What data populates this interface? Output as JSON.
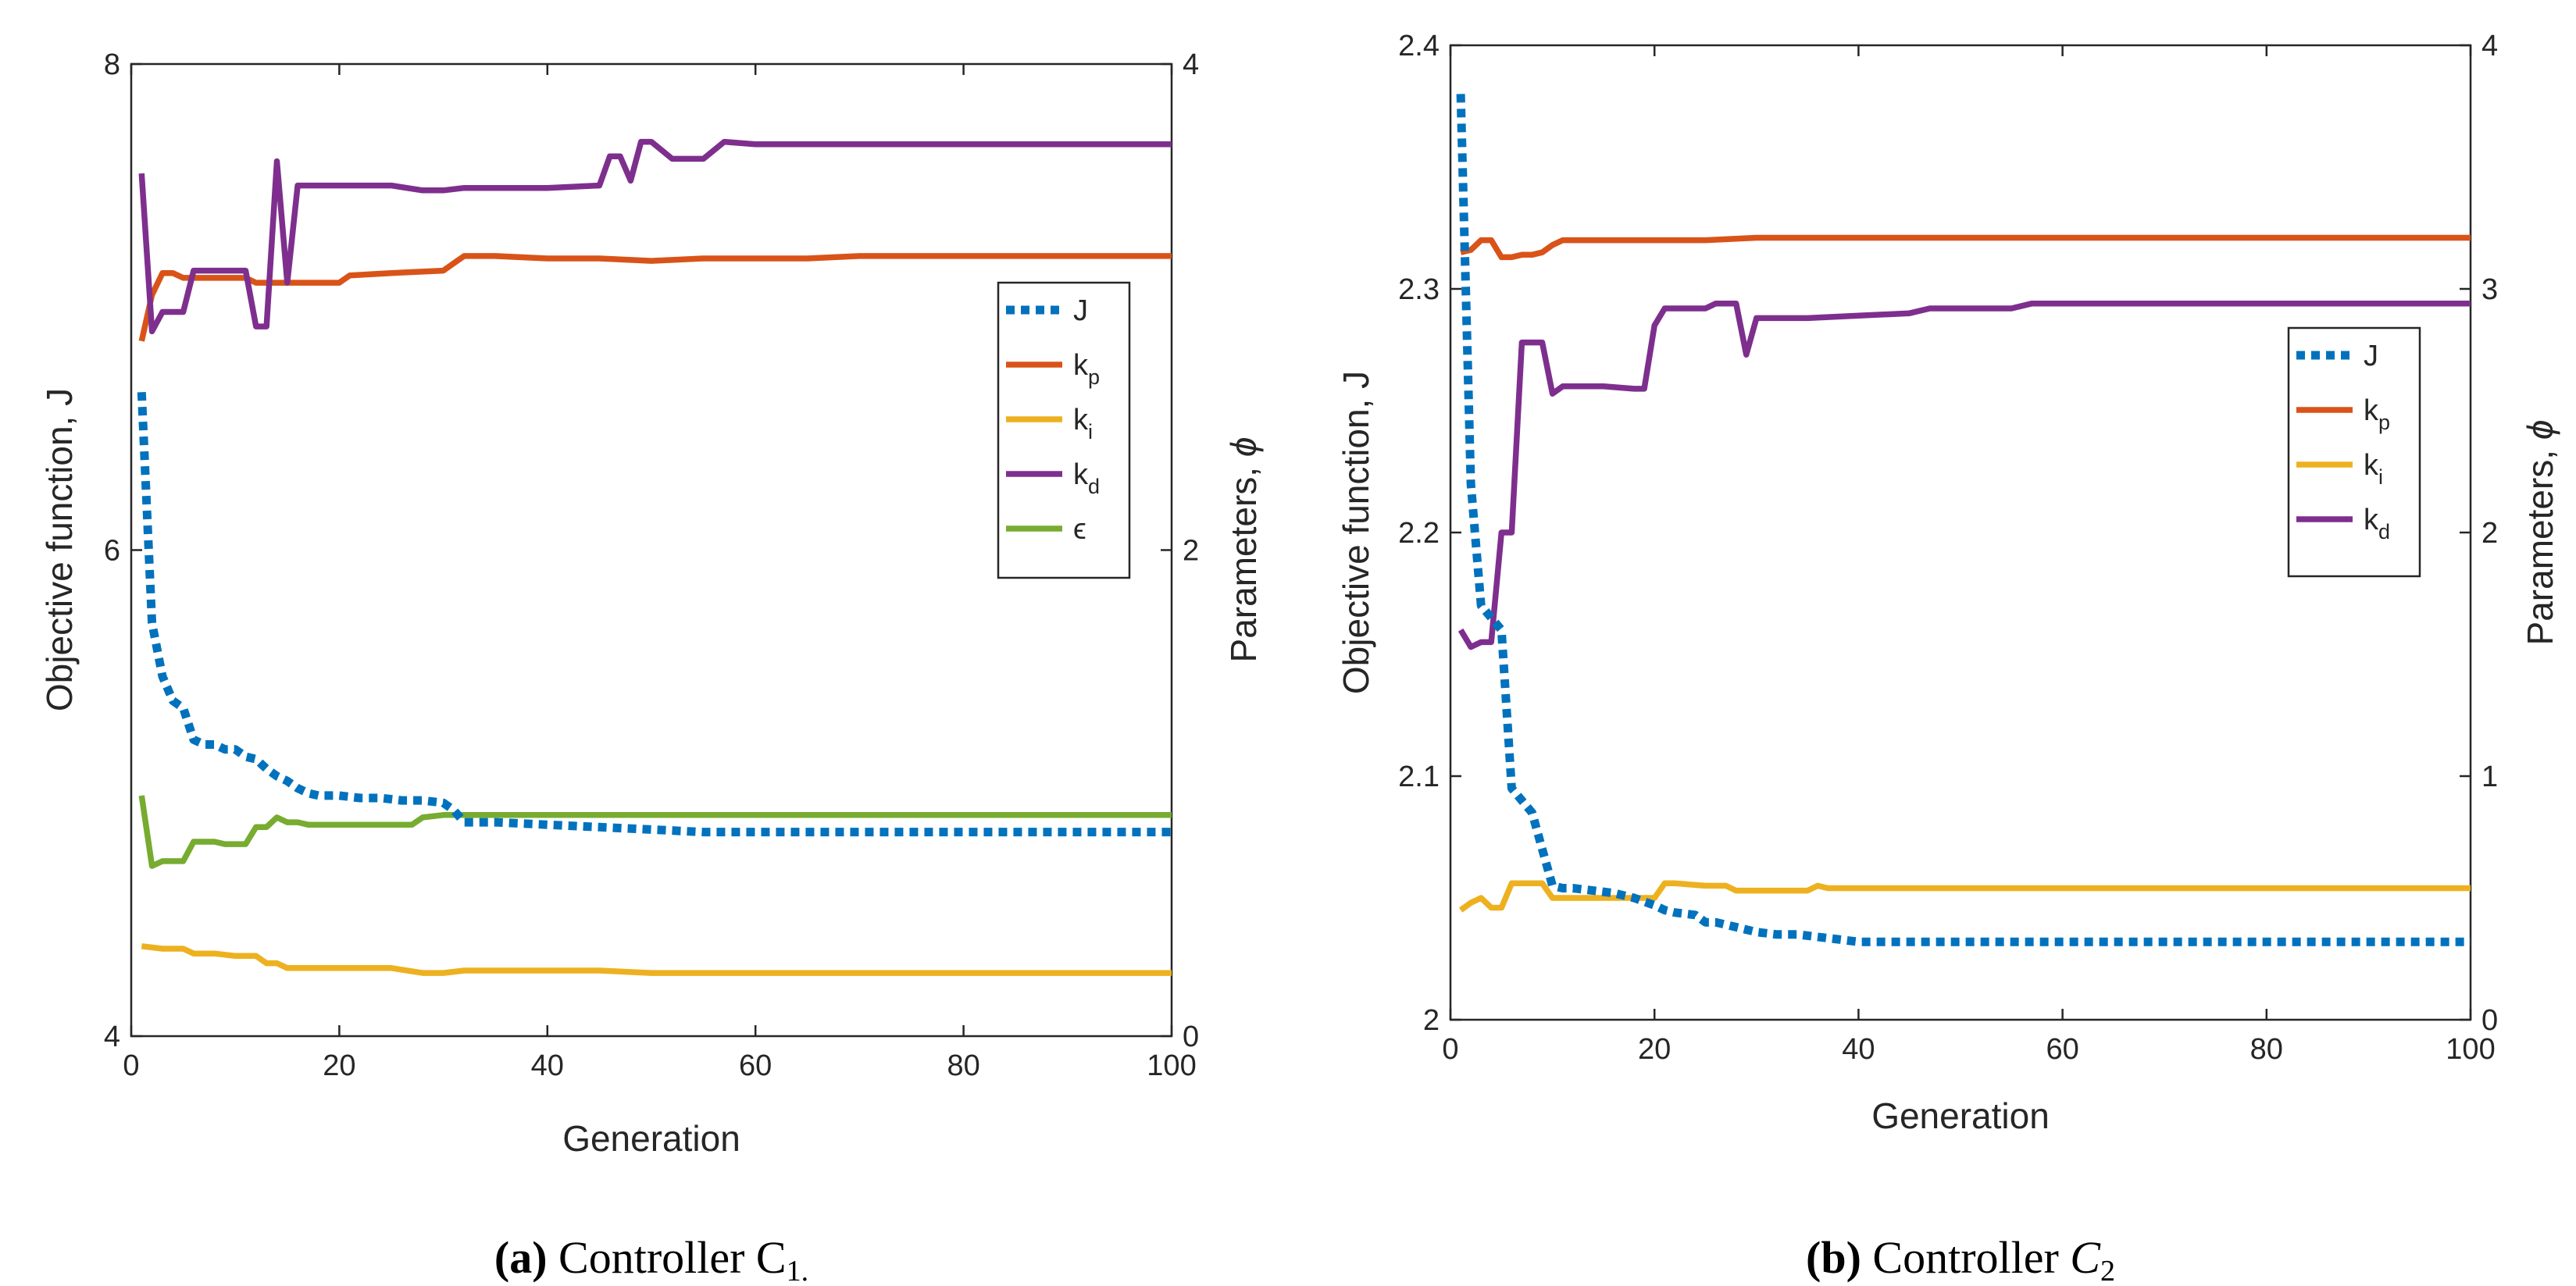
{
  "colors": {
    "J": "#0072BD",
    "kp": "#D95319",
    "ki": "#EDB120",
    "kd": "#7E2F8E",
    "eps": "#77AC30"
  },
  "panels": [
    {
      "id": "a",
      "caption": {
        "bold": "(a)",
        "text": "Controller",
        "sym": "C",
        "sub": "1."
      },
      "chart_data": {
        "type": "line",
        "xlabel": "Generation",
        "ylabel_left": "Objective function, J",
        "ylabel_right_text": "Parameters, ",
        "ylabel_right_sym": "ϕ",
        "xlim": [
          0,
          100
        ],
        "ylim_left": [
          4,
          8
        ],
        "ylim_right": [
          0,
          4
        ],
        "xticks": [
          0,
          20,
          40,
          60,
          80,
          100
        ],
        "yticks_left": [
          4,
          6,
          8
        ],
        "yticks_right": [
          0,
          2,
          4
        ],
        "legend": [
          {
            "key": "J",
            "main": "J",
            "sub": "",
            "style": "dotted"
          },
          {
            "key": "kp",
            "main": "k",
            "sub": "p",
            "style": "solid"
          },
          {
            "key": "ki",
            "main": "k",
            "sub": "i",
            "style": "solid"
          },
          {
            "key": "kd",
            "main": "k",
            "sub": "d",
            "style": "solid"
          },
          {
            "key": "eps",
            "main": "ϵ",
            "sub": "",
            "style": "solid"
          }
        ],
        "series": [
          {
            "key": "J",
            "axis": "left",
            "x": [
              1,
              2,
              3,
              4,
              5,
              6,
              7,
              8,
              9,
              10,
              11,
              12,
              13,
              14,
              15,
              16,
              17,
              18,
              19,
              20,
              22,
              24,
              26,
              28,
              30,
              31,
              32,
              35,
              40,
              45,
              50,
              55,
              60,
              65,
              70,
              80,
              90,
              100
            ],
            "y": [
              6.65,
              5.7,
              5.48,
              5.38,
              5.35,
              5.22,
              5.2,
              5.2,
              5.18,
              5.18,
              5.15,
              5.14,
              5.1,
              5.07,
              5.05,
              5.02,
              5.0,
              4.99,
              4.99,
              4.99,
              4.98,
              4.98,
              4.97,
              4.97,
              4.96,
              4.93,
              4.88,
              4.88,
              4.87,
              4.86,
              4.85,
              4.84,
              4.84,
              4.84,
              4.84,
              4.84,
              4.84,
              4.84
            ]
          },
          {
            "key": "kp",
            "axis": "right",
            "x": [
              1,
              2,
              3,
              4,
              5,
              6,
              7,
              8,
              9,
              10,
              11,
              12,
              13,
              14,
              15,
              16,
              17,
              18,
              19,
              20,
              21,
              25,
              30,
              31,
              32,
              35,
              40,
              45,
              50,
              55,
              60,
              65,
              70,
              80,
              90,
              100
            ],
            "y": [
              2.86,
              3.05,
              3.14,
              3.14,
              3.12,
              3.12,
              3.12,
              3.12,
              3.12,
              3.12,
              3.12,
              3.1,
              3.1,
              3.1,
              3.1,
              3.1,
              3.1,
              3.1,
              3.1,
              3.1,
              3.13,
              3.14,
              3.15,
              3.18,
              3.21,
              3.21,
              3.2,
              3.2,
              3.19,
              3.2,
              3.2,
              3.2,
              3.21,
              3.21,
              3.21,
              3.21
            ]
          },
          {
            "key": "ki",
            "axis": "right",
            "x": [
              1,
              3,
              5,
              6,
              8,
              10,
              12,
              13,
              14,
              15,
              17,
              20,
              25,
              28,
              30,
              32,
              35,
              40,
              45,
              50,
              60,
              70,
              80,
              90,
              100
            ],
            "y": [
              0.37,
              0.36,
              0.36,
              0.34,
              0.34,
              0.33,
              0.33,
              0.3,
              0.3,
              0.28,
              0.28,
              0.28,
              0.28,
              0.26,
              0.26,
              0.27,
              0.27,
              0.27,
              0.27,
              0.26,
              0.26,
              0.26,
              0.26,
              0.26,
              0.26
            ]
          },
          {
            "key": "kd",
            "axis": "right",
            "x": [
              1,
              2,
              3,
              4,
              5,
              6,
              7,
              8,
              9,
              10,
              11,
              12,
              13,
              14,
              15,
              16,
              17,
              18,
              19,
              20,
              25,
              28,
              30,
              32,
              35,
              40,
              45,
              46,
              47,
              48,
              49,
              50,
              52,
              54,
              55,
              57,
              60,
              62,
              65,
              70,
              80,
              90,
              100
            ],
            "y": [
              3.55,
              2.9,
              2.98,
              2.98,
              2.98,
              3.15,
              3.15,
              3.15,
              3.15,
              3.15,
              3.15,
              2.92,
              2.92,
              3.6,
              3.1,
              3.5,
              3.5,
              3.5,
              3.5,
              3.5,
              3.5,
              3.48,
              3.48,
              3.49,
              3.49,
              3.49,
              3.5,
              3.62,
              3.62,
              3.52,
              3.68,
              3.68,
              3.61,
              3.61,
              3.61,
              3.68,
              3.67,
              3.67,
              3.67,
              3.67,
              3.67,
              3.67,
              3.67
            ]
          },
          {
            "key": "eps",
            "axis": "right",
            "x": [
              1,
              2,
              3,
              4,
              5,
              6,
              7,
              8,
              9,
              10,
              11,
              12,
              13,
              14,
              15,
              16,
              17,
              18,
              19,
              20,
              22,
              25,
              27,
              28,
              30,
              35,
              40,
              50,
              60,
              70,
              80,
              90,
              100
            ],
            "y": [
              0.99,
              0.7,
              0.72,
              0.72,
              0.72,
              0.8,
              0.8,
              0.8,
              0.79,
              0.79,
              0.79,
              0.86,
              0.86,
              0.9,
              0.88,
              0.88,
              0.87,
              0.87,
              0.87,
              0.87,
              0.87,
              0.87,
              0.87,
              0.9,
              0.91,
              0.91,
              0.91,
              0.91,
              0.91,
              0.91,
              0.91,
              0.91,
              0.91
            ]
          }
        ]
      }
    },
    {
      "id": "b",
      "caption": {
        "bold": "(b)",
        "text": "Controller",
        "sym": "C",
        "sub": "2"
      },
      "chart_data": {
        "type": "line",
        "xlabel": "Generation",
        "ylabel_left": "Objective function, J",
        "ylabel_right_text": "Parameters, ",
        "ylabel_right_sym": "ϕ",
        "xlim": [
          0,
          100
        ],
        "ylim_left": [
          2,
          2.4
        ],
        "ylim_right": [
          0,
          4
        ],
        "xticks": [
          0,
          20,
          40,
          60,
          80,
          100
        ],
        "yticks_left": [
          2,
          2.1,
          2.2,
          2.3,
          2.4
        ],
        "yticks_right": [
          0,
          1,
          2,
          3,
          4
        ],
        "legend": [
          {
            "key": "J",
            "main": "J",
            "sub": "",
            "style": "dotted"
          },
          {
            "key": "kp",
            "main": "k",
            "sub": "p",
            "style": "solid"
          },
          {
            "key": "ki",
            "main": "k",
            "sub": "i",
            "style": "solid"
          },
          {
            "key": "kd",
            "main": "k",
            "sub": "d",
            "style": "solid"
          }
        ],
        "series": [
          {
            "key": "J",
            "axis": "left",
            "x": [
              1,
              2,
              3,
              4,
              5,
              6,
              7,
              8,
              9,
              10,
              11,
              12,
              14,
              16,
              18,
              20,
              21,
              22,
              24,
              25,
              26,
              28,
              30,
              32,
              34,
              36,
              38,
              40,
              45,
              50,
              60,
              70,
              80,
              90,
              100
            ],
            "y": [
              2.38,
              2.22,
              2.17,
              2.165,
              2.16,
              2.095,
              2.09,
              2.085,
              2.07,
              2.055,
              2.054,
              2.054,
              2.053,
              2.052,
              2.05,
              2.047,
              2.045,
              2.044,
              2.043,
              2.04,
              2.04,
              2.038,
              2.036,
              2.035,
              2.035,
              2.034,
              2.033,
              2.032,
              2.032,
              2.032,
              2.032,
              2.032,
              2.032,
              2.032,
              2.032
            ]
          },
          {
            "key": "kp",
            "axis": "right",
            "x": [
              1,
              2,
              3,
              4,
              5,
              6,
              7,
              8,
              9,
              10,
              11,
              12,
              15,
              20,
              25,
              30,
              35,
              40,
              50,
              60,
              70,
              80,
              90,
              100
            ],
            "y": [
              3.15,
              3.16,
              3.2,
              3.2,
              3.13,
              3.13,
              3.14,
              3.14,
              3.15,
              3.18,
              3.2,
              3.2,
              3.2,
              3.2,
              3.2,
              3.21,
              3.21,
              3.21,
              3.21,
              3.21,
              3.21,
              3.21,
              3.21,
              3.21
            ]
          },
          {
            "key": "ki",
            "axis": "right",
            "x": [
              1,
              2,
              3,
              4,
              5,
              6,
              7,
              8,
              9,
              10,
              11,
              12,
              15,
              20,
              21,
              22,
              25,
              27,
              28,
              30,
              33,
              35,
              36,
              37,
              40,
              45,
              50,
              60,
              70,
              80,
              90,
              100
            ],
            "y": [
              0.45,
              0.48,
              0.5,
              0.46,
              0.46,
              0.56,
              0.56,
              0.56,
              0.56,
              0.5,
              0.5,
              0.5,
              0.5,
              0.5,
              0.56,
              0.56,
              0.55,
              0.55,
              0.53,
              0.53,
              0.53,
              0.53,
              0.55,
              0.54,
              0.54,
              0.54,
              0.54,
              0.54,
              0.54,
              0.54,
              0.54,
              0.54
            ]
          },
          {
            "key": "kd",
            "axis": "right",
            "x": [
              1,
              2,
              3,
              4,
              5,
              6,
              7,
              8,
              9,
              10,
              11,
              12,
              15,
              18,
              19,
              20,
              21,
              22,
              25,
              26,
              27,
              28,
              29,
              30,
              35,
              40,
              45,
              47,
              50,
              55,
              57,
              60,
              70,
              80,
              90,
              100
            ],
            "y": [
              1.6,
              1.53,
              1.55,
              1.55,
              2.0,
              2.0,
              2.78,
              2.78,
              2.78,
              2.57,
              2.6,
              2.6,
              2.6,
              2.59,
              2.59,
              2.85,
              2.92,
              2.92,
              2.92,
              2.94,
              2.94,
              2.94,
              2.73,
              2.88,
              2.88,
              2.89,
              2.9,
              2.92,
              2.92,
              2.92,
              2.94,
              2.94,
              2.94,
              2.94,
              2.94,
              2.94
            ]
          }
        ]
      }
    }
  ]
}
